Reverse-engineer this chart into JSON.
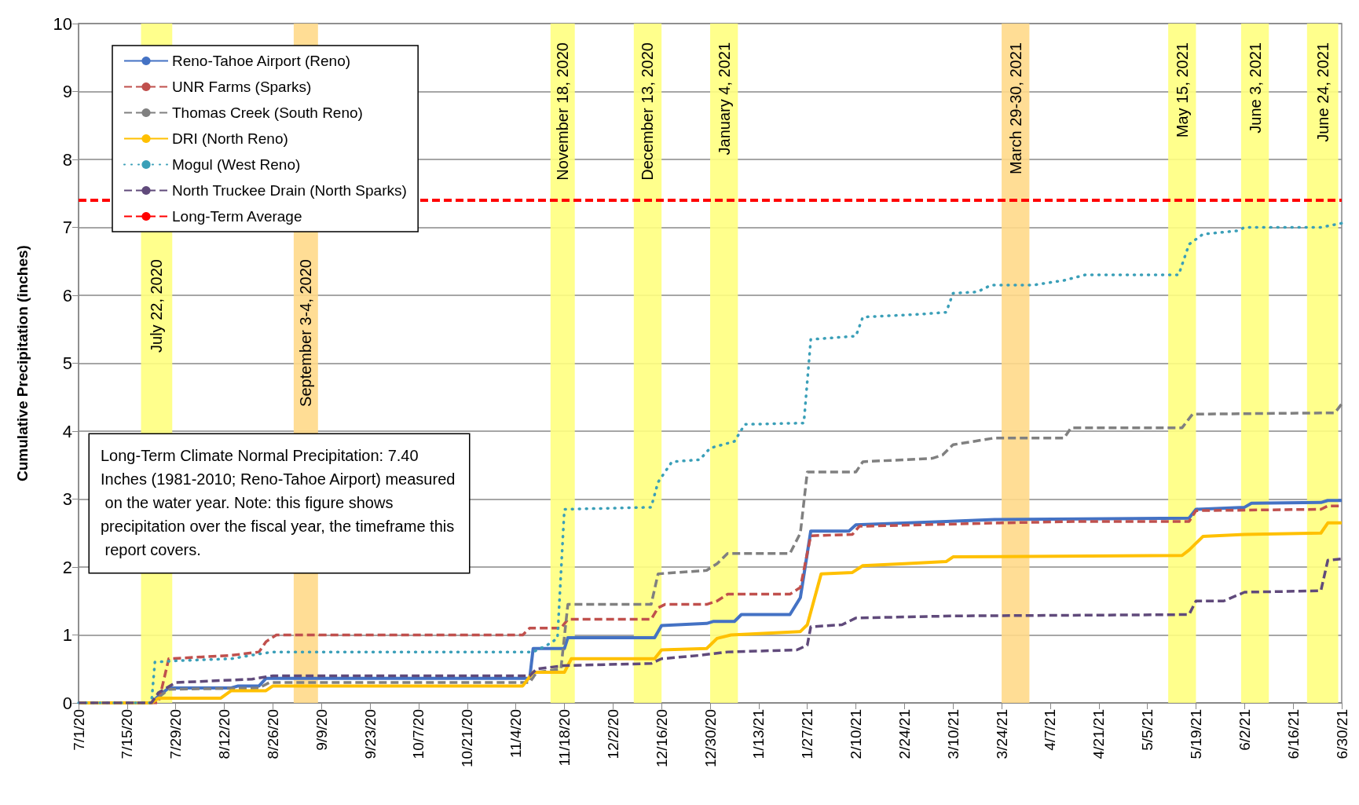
{
  "chart_data": {
    "type": "line",
    "ylabel": "Cumulative Precipitation (inches)",
    "xlim": [
      "2020-07-01",
      "2021-06-30"
    ],
    "xticks": [
      {
        "value": "2020-07-01",
        "label": "7/1/20"
      },
      {
        "value": "2020-07-15",
        "label": "7/15/20"
      },
      {
        "value": "2020-07-29",
        "label": "7/29/20"
      },
      {
        "value": "2020-08-12",
        "label": "8/12/20"
      },
      {
        "value": "2020-08-26",
        "label": "8/26/20"
      },
      {
        "value": "2020-09-09",
        "label": "9/9/20"
      },
      {
        "value": "2020-09-23",
        "label": "9/23/20"
      },
      {
        "value": "2020-10-07",
        "label": "10/7/20"
      },
      {
        "value": "2020-10-21",
        "label": "10/21/20"
      },
      {
        "value": "2020-11-04",
        "label": "11/4/20"
      },
      {
        "value": "2020-11-18",
        "label": "11/18/20"
      },
      {
        "value": "2020-12-02",
        "label": "12/2/20"
      },
      {
        "value": "2020-12-16",
        "label": "12/16/20"
      },
      {
        "value": "2020-12-30",
        "label": "12/30/20"
      },
      {
        "value": "2021-01-13",
        "label": "1/13/21"
      },
      {
        "value": "2021-01-27",
        "label": "1/27/21"
      },
      {
        "value": "2021-02-10",
        "label": "2/10/21"
      },
      {
        "value": "2021-02-24",
        "label": "2/24/21"
      },
      {
        "value": "2021-03-10",
        "label": "3/10/21"
      },
      {
        "value": "2021-03-24",
        "label": "3/24/21"
      },
      {
        "value": "2021-04-07",
        "label": "4/7/21"
      },
      {
        "value": "2021-04-21",
        "label": "4/21/21"
      },
      {
        "value": "2021-05-05",
        "label": "5/5/21"
      },
      {
        "value": "2021-05-19",
        "label": "5/19/21"
      },
      {
        "value": "2021-06-02",
        "label": "6/2/21"
      },
      {
        "value": "2021-06-16",
        "label": "6/16/21"
      },
      {
        "value": "2021-06-30",
        "label": "6/30/21"
      }
    ],
    "ylim": [
      0,
      10
    ],
    "yticks": [
      0,
      1,
      2,
      3,
      4,
      5,
      6,
      7,
      8,
      9,
      10
    ],
    "grid": "y",
    "legend": "top left",
    "marker": "none",
    "series": [
      {
        "name": "Reno-Tahoe Airport (Reno)",
        "color": "#4472c4",
        "line_style": "solid",
        "x": [
          "2020-07-01",
          "2020-07-22",
          "2020-07-24",
          "2020-07-27",
          "2020-08-14",
          "2020-08-16",
          "2020-08-22",
          "2020-08-24",
          "2020-11-08",
          "2020-11-09",
          "2020-11-18",
          "2020-11-19",
          "2020-12-14",
          "2020-12-16",
          "2020-12-29",
          "2020-12-31",
          "2021-01-06",
          "2021-01-08",
          "2021-01-22",
          "2021-01-25",
          "2021-01-28",
          "2021-02-08",
          "2021-02-10",
          "2021-03-08",
          "2021-03-22",
          "2021-05-17",
          "2021-05-19",
          "2021-06-02",
          "2021-06-04",
          "2021-06-24",
          "2021-06-26",
          "2021-06-30"
        ],
        "values": [
          0,
          0,
          0.1,
          0.22,
          0.22,
          0.25,
          0.25,
          0.36,
          0.36,
          0.8,
          0.8,
          0.96,
          0.96,
          1.14,
          1.17,
          1.2,
          1.2,
          1.3,
          1.3,
          1.55,
          2.53,
          2.53,
          2.62,
          2.67,
          2.7,
          2.72,
          2.85,
          2.88,
          2.94,
          2.95,
          2.98,
          2.98
        ]
      },
      {
        "name": "UNR Farms (Sparks)",
        "color": "#c0504d",
        "line_style": "dashed",
        "x": [
          "2020-07-01",
          "2020-07-24",
          "2020-07-27",
          "2020-08-14",
          "2020-08-22",
          "2020-08-24",
          "2020-08-27",
          "2020-11-06",
          "2020-11-08",
          "2020-11-17",
          "2020-11-19",
          "2020-12-13",
          "2020-12-15",
          "2020-12-17",
          "2020-12-29",
          "2021-01-01",
          "2021-01-04",
          "2021-01-22",
          "2021-01-25",
          "2021-01-28",
          "2021-02-09",
          "2021-02-11",
          "2021-03-24",
          "2021-04-14",
          "2021-05-17",
          "2021-05-19",
          "2021-06-24",
          "2021-06-26",
          "2021-06-30"
        ],
        "values": [
          0,
          0,
          0.65,
          0.7,
          0.75,
          0.9,
          1.0,
          1.0,
          1.1,
          1.1,
          1.23,
          1.23,
          1.4,
          1.45,
          1.45,
          1.5,
          1.6,
          1.6,
          1.7,
          2.46,
          2.48,
          2.6,
          2.65,
          2.67,
          2.67,
          2.83,
          2.85,
          2.9,
          2.9
        ]
      },
      {
        "name": "Thomas Creek (South Reno)",
        "color": "#808080",
        "line_style": "dashed",
        "x": [
          "2020-07-01",
          "2020-07-22",
          "2020-07-27",
          "2020-08-22",
          "2020-08-25",
          "2020-11-08",
          "2020-11-10",
          "2020-11-17",
          "2020-11-19",
          "2020-12-13",
          "2020-12-15",
          "2020-12-29",
          "2021-01-01",
          "2021-01-04",
          "2021-01-22",
          "2021-01-25",
          "2021-01-27",
          "2021-02-10",
          "2021-02-12",
          "2021-03-04",
          "2021-03-07",
          "2021-03-10",
          "2021-03-22",
          "2021-04-11",
          "2021-04-13",
          "2021-05-15",
          "2021-05-18",
          "2021-06-28",
          "2021-06-30"
        ],
        "values": [
          0,
          0,
          0.2,
          0.22,
          0.3,
          0.3,
          0.45,
          0.5,
          1.45,
          1.45,
          1.9,
          1.95,
          2.05,
          2.2,
          2.2,
          2.5,
          3.4,
          3.4,
          3.55,
          3.6,
          3.65,
          3.8,
          3.9,
          3.9,
          4.05,
          4.05,
          4.25,
          4.27,
          4.4
        ]
      },
      {
        "name": "DRI (North Reno)",
        "color": "#ffc000",
        "line_style": "solid",
        "x": [
          "2020-07-01",
          "2020-07-22",
          "2020-07-24",
          "2020-08-11",
          "2020-08-14",
          "2020-08-24",
          "2020-08-26",
          "2020-11-06",
          "2020-11-09",
          "2020-11-18",
          "2020-11-20",
          "2020-12-14",
          "2020-12-16",
          "2020-12-29",
          "2021-01-01",
          "2021-01-05",
          "2021-01-25",
          "2021-01-27",
          "2021-01-31",
          "2021-02-09",
          "2021-02-12",
          "2021-02-24",
          "2021-03-08",
          "2021-03-10",
          "2021-05-15",
          "2021-05-17",
          "2021-05-21",
          "2021-06-02",
          "2021-06-24",
          "2021-06-26",
          "2021-06-30"
        ],
        "values": [
          0,
          0,
          0.07,
          0.07,
          0.18,
          0.18,
          0.25,
          0.25,
          0.45,
          0.45,
          0.65,
          0.65,
          0.78,
          0.8,
          0.95,
          1.0,
          1.05,
          1.15,
          1.9,
          1.92,
          2.02,
          2.05,
          2.08,
          2.15,
          2.17,
          2.25,
          2.45,
          2.48,
          2.5,
          2.65,
          2.65
        ]
      },
      {
        "name": "Mogul (West Reno)",
        "color": "#3a9fb8",
        "line_style": "dotted",
        "x": [
          "2020-07-01",
          "2020-07-22",
          "2020-07-23",
          "2020-07-29",
          "2020-08-14",
          "2020-08-22",
          "2020-08-26",
          "2020-11-09",
          "2020-11-13",
          "2020-11-16",
          "2020-11-18",
          "2020-12-13",
          "2020-12-15",
          "2020-12-19",
          "2020-12-27",
          "2020-12-30",
          "2021-01-06",
          "2021-01-09",
          "2021-01-26",
          "2021-01-28",
          "2021-02-10",
          "2021-02-12",
          "2021-02-28",
          "2021-03-08",
          "2021-03-10",
          "2021-03-17",
          "2021-03-21",
          "2021-04-02",
          "2021-04-11",
          "2021-04-17",
          "2021-05-14",
          "2021-05-17",
          "2021-05-21",
          "2021-05-31",
          "2021-06-02",
          "2021-06-24",
          "2021-06-30"
        ],
        "values": [
          0,
          0,
          0.6,
          0.62,
          0.65,
          0.72,
          0.75,
          0.75,
          0.85,
          0.95,
          2.85,
          2.88,
          3.25,
          3.55,
          3.58,
          3.75,
          3.85,
          4.1,
          4.12,
          5.35,
          5.4,
          5.68,
          5.72,
          5.75,
          6.03,
          6.05,
          6.15,
          6.15,
          6.22,
          6.3,
          6.3,
          6.75,
          6.9,
          6.95,
          7.0,
          7.0,
          7.06
        ]
      },
      {
        "name": "North Truckee Drain (North Sparks)",
        "color": "#604a7b",
        "line_style": "dashed",
        "x": [
          "2020-07-01",
          "2020-07-22",
          "2020-07-24",
          "2020-07-29",
          "2020-08-20",
          "2020-08-26",
          "2020-11-08",
          "2020-11-10",
          "2020-11-18",
          "2020-12-13",
          "2020-12-16",
          "2020-12-27",
          "2021-01-04",
          "2021-01-24",
          "2021-01-27",
          "2021-01-28",
          "2021-02-06",
          "2021-02-10",
          "2021-03-10",
          "2021-05-17",
          "2021-05-19",
          "2021-05-27",
          "2021-06-02",
          "2021-06-24",
          "2021-06-26",
          "2021-06-30"
        ],
        "values": [
          0,
          0,
          0.15,
          0.3,
          0.35,
          0.4,
          0.4,
          0.5,
          0.55,
          0.58,
          0.65,
          0.7,
          0.75,
          0.78,
          0.85,
          1.12,
          1.15,
          1.25,
          1.28,
          1.3,
          1.5,
          1.5,
          1.63,
          1.65,
          2.1,
          2.12
        ]
      }
    ],
    "ref_lines": [
      {
        "axis": "y",
        "value": 7.4,
        "label": "Long-Term Average",
        "color": "#ff0000",
        "line_style": "dashed"
      }
    ],
    "bands": [
      {
        "axis": "x",
        "from": "2020-07-19",
        "to": "2020-07-28",
        "label": "July 22, 2020",
        "color": "#ffff80"
      },
      {
        "axis": "x",
        "from": "2020-09-01",
        "to": "2020-09-08",
        "label": "September 3-4, 2020",
        "color": "#ffd98a"
      },
      {
        "axis": "x",
        "from": "2020-11-14",
        "to": "2020-11-21",
        "label": "November 18, 2020",
        "color": "#ffff80"
      },
      {
        "axis": "x",
        "from": "2020-12-08",
        "to": "2020-12-16",
        "label": "December 13, 2020",
        "color": "#ffff80"
      },
      {
        "axis": "x",
        "from": "2020-12-30",
        "to": "2021-01-07",
        "label": "January 4, 2021",
        "color": "#ffff80"
      },
      {
        "axis": "x",
        "from": "2021-03-24",
        "to": "2021-04-01",
        "label": "March 29-30, 2021",
        "color": "#ffd98a"
      },
      {
        "axis": "x",
        "from": "2021-05-11",
        "to": "2021-05-19",
        "label": "May 15, 2021",
        "color": "#ffff80"
      },
      {
        "axis": "x",
        "from": "2021-06-01",
        "to": "2021-06-09",
        "label": "June 3, 2021",
        "color": "#ffff80"
      },
      {
        "axis": "x",
        "from": "2021-06-20",
        "to": "2021-06-29",
        "label": "June 24, 2021",
        "color": "#ffff80"
      }
    ],
    "annotations": [
      "Long-Term Climate Normal Precipitation: 7.40 Inches (1981-2010; Reno-Tahoe Airport) measured on the water year. Note: this figure shows precipitation over the fiscal year, the timeframe this report covers."
    ]
  }
}
